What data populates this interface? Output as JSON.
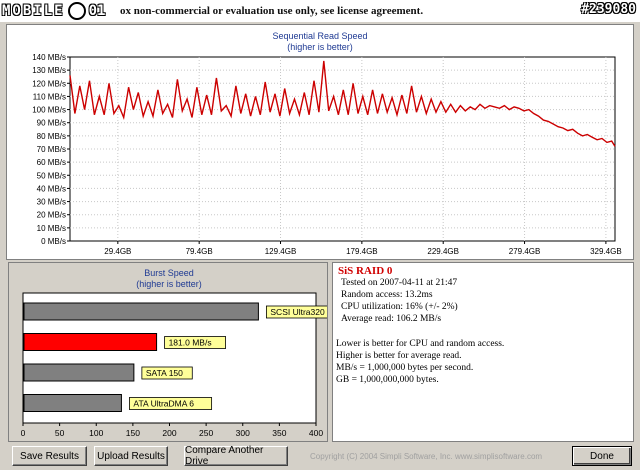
{
  "watermark": {
    "brand": "MOBILE",
    "ring": "",
    "num": "01",
    "tag": "#239080"
  },
  "license_text": "ox non-commercial or evaluation use only, see license agreement.",
  "seq_chart": {
    "title": "Sequential Read Speed",
    "subtitle": "(higher is better)",
    "y_ticks": [
      "0 MB/s",
      "10 MB/s",
      "20 MB/s",
      "30 MB/s",
      "40 MB/s",
      "50 MB/s",
      "60 MB/s",
      "70 MB/s",
      "80 MB/s",
      "90 MB/s",
      "100 MB/s",
      "110 MB/s",
      "120 MB/s",
      "130 MB/s",
      "140 MB/s"
    ],
    "x_ticks": [
      "29.4GB",
      "79.4GB",
      "129.4GB",
      "179.4GB",
      "229.4GB",
      "279.4GB",
      "329.4GB"
    ]
  },
  "burst_chart": {
    "title": "Burst Speed",
    "subtitle": "(higher is better)",
    "x_ticks": [
      "0",
      "50",
      "100",
      "150",
      "200",
      "250",
      "300",
      "350",
      "400"
    ]
  },
  "result": {
    "title": "SiS RAID 0",
    "lines": [
      "Tested on 2007-04-11 at 21:47",
      "Random access: 13.2ms",
      "CPU utilization: 16% (+/- 2%)",
      "Average read: 106.2 MB/s"
    ],
    "notes": [
      "Lower is better for CPU and random access.",
      "Higher is better for average read.",
      "MB/s = 1,000,000 bytes per second.",
      "GB = 1,000,000,000 bytes."
    ]
  },
  "buttons": {
    "save": "Save Results",
    "upload": "Upload Results",
    "compare": "Compare Another Drive",
    "done": "Done"
  },
  "copyright": "Copyright (C) 2004 Simpli Software, Inc. www.simplisoftware.com",
  "colors": {
    "line": "#cc0000",
    "highlight_bar": "#ff0000",
    "bar": "#808080",
    "label_bg": "#ffff99"
  },
  "chart_data": [
    {
      "type": "line",
      "title": "Sequential Read Speed",
      "subtitle": "(higher is better)",
      "xlabel": "",
      "ylabel": "",
      "ylim": [
        0,
        140
      ],
      "xlim": [
        0,
        335
      ],
      "grid": true,
      "x_unit": "GB",
      "y_unit": "MB/s",
      "series": [
        {
          "x": [
            0,
            3,
            6,
            9,
            12,
            15,
            18,
            21,
            24,
            27,
            30,
            33,
            36,
            39,
            42,
            45,
            48,
            51,
            54,
            57,
            60,
            63,
            66,
            69,
            72,
            75,
            78,
            81,
            84,
            87,
            90,
            93,
            96,
            99,
            102,
            105,
            108,
            111,
            114,
            117,
            120,
            123,
            126,
            129,
            132,
            135,
            138,
            141,
            144,
            147,
            150,
            153,
            156,
            159,
            162,
            165,
            168,
            171,
            174,
            177,
            180,
            183,
            186,
            189,
            192,
            195,
            198,
            201,
            204,
            207,
            210,
            213,
            216,
            219,
            222,
            225,
            228,
            231,
            234,
            237,
            240,
            243,
            246,
            249,
            252,
            255,
            258,
            261,
            264,
            267,
            270,
            273,
            276,
            279,
            282,
            285,
            288,
            291,
            294,
            297,
            300,
            303,
            306,
            309,
            312,
            315,
            318,
            321,
            324,
            327,
            330,
            333,
            335
          ],
          "values": [
            126,
            97,
            118,
            100,
            122,
            96,
            110,
            96,
            120,
            97,
            103,
            94,
            117,
            100,
            113,
            95,
            106,
            95,
            115,
            97,
            104,
            94,
            123,
            99,
            108,
            94,
            117,
            96,
            111,
            96,
            124,
            99,
            103,
            95,
            118,
            97,
            112,
            95,
            110,
            96,
            121,
            98,
            112,
            95,
            116,
            97,
            108,
            96,
            113,
            96,
            122,
            98,
            137,
            99,
            110,
            96,
            115,
            96,
            120,
            97,
            110,
            96,
            115,
            97,
            112,
            98,
            109,
            96,
            111,
            97,
            118,
            98,
            110,
            97,
            108,
            98,
            106,
            98,
            104,
            98,
            103,
            99,
            102,
            100,
            104,
            101,
            103,
            102,
            101,
            103,
            100,
            102,
            101,
            99,
            100,
            97,
            95,
            92,
            91,
            89,
            87,
            86,
            84,
            85,
            82,
            80,
            81,
            79,
            77,
            78,
            75,
            76,
            72
          ]
        }
      ]
    },
    {
      "type": "bar",
      "title": "Burst Speed",
      "subtitle": "(higher is better)",
      "xlabel": "",
      "ylabel": "",
      "xlim": [
        0,
        400
      ],
      "orientation": "horizontal",
      "categories": [
        "SCSI Ultra320",
        "181.0 MB/s",
        "SATA 150",
        "ATA UltraDMA 6"
      ],
      "values": [
        320,
        181,
        150,
        133
      ],
      "highlight_index": 1
    }
  ]
}
